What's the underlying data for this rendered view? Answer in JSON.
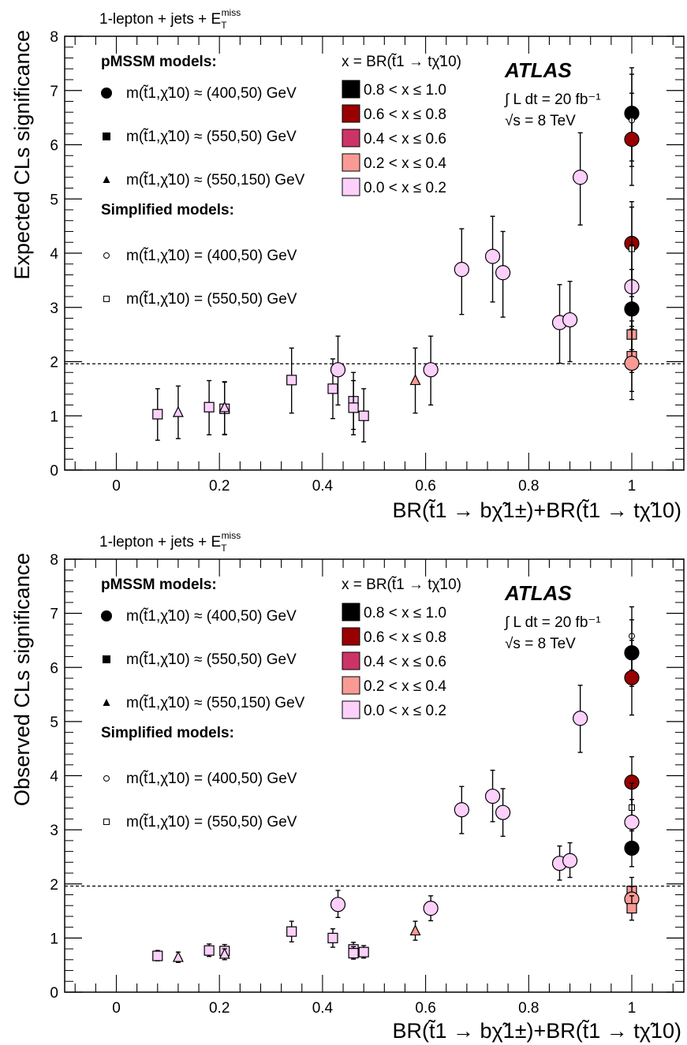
{
  "colors": {
    "bin_0.8_1.0": "#000000",
    "bin_0.6_0.8": "#990000",
    "bin_0.4_0.6": "#cc3366",
    "bin_0.2_0.4": "#f99a95",
    "bin_0.0_0.2": "#fdd0fb",
    "reference_line": "#000000"
  },
  "chart_data": [
    {
      "type": "scatter",
      "panel": "top",
      "channel": "1-lepton + jets + E_T^miss",
      "xlabel": "BR(t̃1 → bχ̃1±)+BR(t̃1 → tχ̃10)",
      "ylabel": "Expected CLs significance",
      "xlim": [
        -0.1,
        1.1
      ],
      "ylim": [
        0,
        8
      ],
      "xticks": [
        "0",
        "0.2",
        "0.4",
        "0.6",
        "0.8",
        "1"
      ],
      "yticks": [
        "0",
        "1",
        "2",
        "3",
        "4",
        "5",
        "6",
        "7",
        "8"
      ],
      "reference_line": 1.96,
      "experiment": "ATLAS",
      "luminosity": "∫ L dt = 20 fb⁻¹",
      "energy": "√s = 8 TeV",
      "legend_left": {
        "pmssm_title": "pMSSM models:",
        "simplified_title": "Simplified models:",
        "entries": [
          {
            "marker": "circle",
            "label": "m(t̃1,χ̃10) ≈ (400,50) GeV"
          },
          {
            "marker": "square",
            "label": "m(t̃1,χ̃10) ≈ (550,50) GeV"
          },
          {
            "marker": "triangle",
            "label": "m(t̃1,χ̃10) ≈ (550,150) GeV"
          },
          {
            "marker": "open-circle",
            "label": "m(t̃1,χ̃10) = (400,50) GeV"
          },
          {
            "marker": "open-square",
            "label": "m(t̃1,χ̃10) = (550,50) GeV"
          }
        ]
      },
      "legend_right": {
        "title": "x = BR(t̃1 → tχ̃10)",
        "bins": [
          {
            "label": "0.8 < x ≤ 1.0",
            "color_key": "bin_0.8_1.0"
          },
          {
            "label": "0.6 < x ≤ 0.8",
            "color_key": "bin_0.6_0.8"
          },
          {
            "label": "0.4 < x ≤ 0.6",
            "color_key": "bin_0.4_0.6"
          },
          {
            "label": "0.2 < x ≤ 0.4",
            "color_key": "bin_0.2_0.4"
          },
          {
            "label": "0.0 < x ≤ 0.2",
            "color_key": "bin_0.0_0.2"
          }
        ]
      },
      "points": [
        {
          "marker": "square",
          "bin": "bin_0.0_0.2",
          "x": 0.08,
          "y": 1.03,
          "lo": 0.55,
          "hi": 1.5
        },
        {
          "marker": "triangle",
          "bin": "bin_0.0_0.2",
          "x": 0.12,
          "y": 1.06,
          "lo": 0.58,
          "hi": 1.55
        },
        {
          "marker": "square",
          "bin": "bin_0.0_0.2",
          "x": 0.18,
          "y": 1.16,
          "lo": 0.65,
          "hi": 1.65
        },
        {
          "marker": "square",
          "bin": "bin_0.0_0.2",
          "x": 0.21,
          "y": 1.13,
          "lo": 0.65,
          "hi": 1.62
        },
        {
          "marker": "triangle",
          "bin": "bin_0.0_0.2",
          "x": 0.21,
          "y": 1.15,
          "lo": 0.66,
          "hi": 1.63
        },
        {
          "marker": "square",
          "bin": "bin_0.0_0.2",
          "x": 0.34,
          "y": 1.66,
          "lo": 1.05,
          "hi": 2.25
        },
        {
          "marker": "square",
          "bin": "bin_0.0_0.2",
          "x": 0.42,
          "y": 1.5,
          "lo": 0.95,
          "hi": 2.05
        },
        {
          "marker": "circle",
          "bin": "bin_0.0_0.2",
          "x": 0.43,
          "y": 1.85,
          "lo": 1.2,
          "hi": 2.47
        },
        {
          "marker": "square",
          "bin": "bin_0.0_0.2",
          "x": 0.46,
          "y": 1.27,
          "lo": 0.75,
          "hi": 1.8
        },
        {
          "marker": "square",
          "bin": "bin_0.0_0.2",
          "x": 0.46,
          "y": 1.15,
          "lo": 0.65,
          "hi": 1.65
        },
        {
          "marker": "square",
          "bin": "bin_0.0_0.2",
          "x": 0.48,
          "y": 1.0,
          "lo": 0.52,
          "hi": 1.5
        },
        {
          "marker": "triangle",
          "bin": "bin_0.2_0.4",
          "x": 0.58,
          "y": 1.65,
          "lo": 1.05,
          "hi": 2.25
        },
        {
          "marker": "circle",
          "bin": "bin_0.0_0.2",
          "x": 0.61,
          "y": 1.85,
          "lo": 1.2,
          "hi": 2.47
        },
        {
          "marker": "circle",
          "bin": "bin_0.0_0.2",
          "x": 0.67,
          "y": 3.7,
          "lo": 2.87,
          "hi": 4.45
        },
        {
          "marker": "circle",
          "bin": "bin_0.0_0.2",
          "x": 0.73,
          "y": 3.94,
          "lo": 3.1,
          "hi": 4.68
        },
        {
          "marker": "circle",
          "bin": "bin_0.0_0.2",
          "x": 0.75,
          "y": 3.64,
          "lo": 2.82,
          "hi": 4.4
        },
        {
          "marker": "circle",
          "bin": "bin_0.0_0.2",
          "x": 0.86,
          "y": 2.72,
          "lo": 1.97,
          "hi": 3.42
        },
        {
          "marker": "circle",
          "bin": "bin_0.0_0.2",
          "x": 0.88,
          "y": 2.77,
          "lo": 2.0,
          "hi": 3.48
        },
        {
          "marker": "circle",
          "bin": "bin_0.0_0.2",
          "x": 0.9,
          "y": 5.4,
          "lo": 4.52,
          "hi": 6.22
        },
        {
          "marker": "circle",
          "bin": "bin_0.8_1.0",
          "x": 1.0,
          "y": 6.58,
          "lo": 5.7,
          "hi": 7.42
        },
        {
          "marker": "open-circle",
          "bin": "bin_0.8_1.0",
          "x": 1.0,
          "y": 6.45,
          "lo": 5.6,
          "hi": 7.3
        },
        {
          "marker": "circle",
          "bin": "bin_0.6_0.8",
          "x": 1.0,
          "y": 6.1,
          "lo": 5.25,
          "hi": 6.95
        },
        {
          "marker": "circle",
          "bin": "bin_0.6_0.8",
          "x": 1.0,
          "y": 4.18,
          "lo": 3.4,
          "hi": 4.95
        },
        {
          "marker": "open-square",
          "bin": "bin_0.8_1.0",
          "x": 1.0,
          "y": 4.08,
          "lo": 3.3,
          "hi": 4.85
        },
        {
          "marker": "circle",
          "bin": "bin_0.0_0.2",
          "x": 1.0,
          "y": 3.38,
          "lo": 2.6,
          "hi": 4.15
        },
        {
          "marker": "circle",
          "bin": "bin_0.8_1.0",
          "x": 1.0,
          "y": 2.97,
          "lo": 2.22,
          "hi": 3.7
        },
        {
          "marker": "square",
          "bin": "bin_0.2_0.4",
          "x": 1.0,
          "y": 2.5,
          "lo": 1.8,
          "hi": 3.2
        },
        {
          "marker": "square",
          "bin": "bin_0.2_0.4",
          "x": 1.0,
          "y": 2.1,
          "lo": 1.45,
          "hi": 2.75
        },
        {
          "marker": "circle",
          "bin": "bin_0.2_0.4",
          "x": 1.0,
          "y": 1.97,
          "lo": 1.3,
          "hi": 2.65
        }
      ]
    },
    {
      "type": "scatter",
      "panel": "bottom",
      "channel": "1-lepton + jets + E_T^miss",
      "xlabel": "BR(t̃1 → bχ̃1±)+BR(t̃1 → tχ̃10)",
      "ylabel": "Observed CLs significance",
      "xlim": [
        -0.1,
        1.1
      ],
      "ylim": [
        0,
        8
      ],
      "xticks": [
        "0",
        "0.2",
        "0.4",
        "0.6",
        "0.8",
        "1"
      ],
      "yticks": [
        "0",
        "1",
        "2",
        "3",
        "4",
        "5",
        "6",
        "7",
        "8"
      ],
      "reference_line": 1.96,
      "experiment": "ATLAS",
      "luminosity": "∫ L dt = 20 fb⁻¹",
      "energy": "√s = 8 TeV",
      "legend_left": {
        "pmssm_title": "pMSSM models:",
        "simplified_title": "Simplified models:",
        "entries": [
          {
            "marker": "circle",
            "label": "m(t̃1,χ̃10) ≈ (400,50) GeV"
          },
          {
            "marker": "square",
            "label": "m(t̃1,χ̃10) ≈ (550,50) GeV"
          },
          {
            "marker": "triangle",
            "label": "m(t̃1,χ̃10) ≈ (550,150) GeV"
          },
          {
            "marker": "open-circle",
            "label": "m(t̃1,χ̃10) = (400,50) GeV"
          },
          {
            "marker": "open-square",
            "label": "m(t̃1,χ̃10) = (550,50) GeV"
          }
        ]
      },
      "legend_right": {
        "title": "x = BR(t̃1 → tχ̃10)",
        "bins": [
          {
            "label": "0.8 < x ≤ 1.0",
            "color_key": "bin_0.8_1.0"
          },
          {
            "label": "0.6 < x ≤ 0.8",
            "color_key": "bin_0.6_0.8"
          },
          {
            "label": "0.4 < x ≤ 0.6",
            "color_key": "bin_0.4_0.6"
          },
          {
            "label": "0.2 < x ≤ 0.4",
            "color_key": "bin_0.2_0.4"
          },
          {
            "label": "0.0 < x ≤ 0.2",
            "color_key": "bin_0.0_0.2"
          }
        ]
      },
      "points": [
        {
          "marker": "square",
          "bin": "bin_0.0_0.2",
          "x": 0.08,
          "y": 0.67,
          "lo": 0.58,
          "hi": 0.77
        },
        {
          "marker": "triangle",
          "bin": "bin_0.0_0.2",
          "x": 0.12,
          "y": 0.64,
          "lo": 0.55,
          "hi": 0.74
        },
        {
          "marker": "square",
          "bin": "bin_0.0_0.2",
          "x": 0.18,
          "y": 0.77,
          "lo": 0.66,
          "hi": 0.89
        },
        {
          "marker": "square",
          "bin": "bin_0.0_0.2",
          "x": 0.21,
          "y": 0.76,
          "lo": 0.64,
          "hi": 0.88
        },
        {
          "marker": "triangle",
          "bin": "bin_0.0_0.2",
          "x": 0.21,
          "y": 0.7,
          "lo": 0.6,
          "hi": 0.8
        },
        {
          "marker": "square",
          "bin": "bin_0.0_0.2",
          "x": 0.34,
          "y": 1.12,
          "lo": 0.93,
          "hi": 1.31
        },
        {
          "marker": "square",
          "bin": "bin_0.0_0.2",
          "x": 0.42,
          "y": 1.0,
          "lo": 0.83,
          "hi": 1.17
        },
        {
          "marker": "circle",
          "bin": "bin_0.0_0.2",
          "x": 0.43,
          "y": 1.62,
          "lo": 1.38,
          "hi": 1.88
        },
        {
          "marker": "square",
          "bin": "bin_0.0_0.2",
          "x": 0.46,
          "y": 0.79,
          "lo": 0.67,
          "hi": 0.92
        },
        {
          "marker": "square",
          "bin": "bin_0.0_0.2",
          "x": 0.46,
          "y": 0.72,
          "lo": 0.61,
          "hi": 0.84
        },
        {
          "marker": "square",
          "bin": "bin_0.0_0.2",
          "x": 0.48,
          "y": 0.74,
          "lo": 0.63,
          "hi": 0.86
        },
        {
          "marker": "triangle",
          "bin": "bin_0.2_0.4",
          "x": 0.58,
          "y": 1.13,
          "lo": 0.96,
          "hi": 1.31
        },
        {
          "marker": "circle",
          "bin": "bin_0.0_0.2",
          "x": 0.61,
          "y": 1.55,
          "lo": 1.32,
          "hi": 1.78
        },
        {
          "marker": "circle",
          "bin": "bin_0.0_0.2",
          "x": 0.67,
          "y": 3.37,
          "lo": 2.93,
          "hi": 3.8
        },
        {
          "marker": "circle",
          "bin": "bin_0.0_0.2",
          "x": 0.73,
          "y": 3.62,
          "lo": 3.15,
          "hi": 4.1
        },
        {
          "marker": "circle",
          "bin": "bin_0.0_0.2",
          "x": 0.75,
          "y": 3.32,
          "lo": 2.88,
          "hi": 3.76
        },
        {
          "marker": "circle",
          "bin": "bin_0.0_0.2",
          "x": 0.86,
          "y": 2.38,
          "lo": 2.07,
          "hi": 2.7
        },
        {
          "marker": "circle",
          "bin": "bin_0.0_0.2",
          "x": 0.88,
          "y": 2.43,
          "lo": 2.12,
          "hi": 2.76
        },
        {
          "marker": "circle",
          "bin": "bin_0.0_0.2",
          "x": 0.9,
          "y": 5.06,
          "lo": 4.43,
          "hi": 5.67
        },
        {
          "marker": "open-circle",
          "bin": "bin_0.8_1.0",
          "x": 1.0,
          "y": 6.58,
          "lo": 5.95,
          "hi": 7.12
        },
        {
          "marker": "circle",
          "bin": "bin_0.8_1.0",
          "x": 1.0,
          "y": 6.27,
          "lo": 5.65,
          "hi": 6.88
        },
        {
          "marker": "circle",
          "bin": "bin_0.6_0.8",
          "x": 1.0,
          "y": 5.81,
          "lo": 5.12,
          "hi": 6.5
        },
        {
          "marker": "circle",
          "bin": "bin_0.6_0.8",
          "x": 1.0,
          "y": 3.88,
          "lo": 3.42,
          "hi": 4.35
        },
        {
          "marker": "open-square",
          "bin": "bin_0.8_1.0",
          "x": 1.0,
          "y": 3.41,
          "lo": 2.98,
          "hi": 3.86
        },
        {
          "marker": "circle",
          "bin": "bin_0.0_0.2",
          "x": 1.0,
          "y": 3.14,
          "lo": 2.73,
          "hi": 3.56
        },
        {
          "marker": "circle",
          "bin": "bin_0.8_1.0",
          "x": 1.0,
          "y": 2.66,
          "lo": 2.32,
          "hi": 3.01
        },
        {
          "marker": "square",
          "bin": "bin_0.2_0.4",
          "x": 1.0,
          "y": 1.87,
          "lo": 1.62,
          "hi": 2.12
        },
        {
          "marker": "circle",
          "bin": "bin_0.2_0.4",
          "x": 1.0,
          "y": 1.72,
          "lo": 1.5,
          "hi": 1.95
        },
        {
          "marker": "square",
          "bin": "bin_0.2_0.4",
          "x": 1.0,
          "y": 1.55,
          "lo": 1.33,
          "hi": 1.78
        }
      ]
    }
  ]
}
